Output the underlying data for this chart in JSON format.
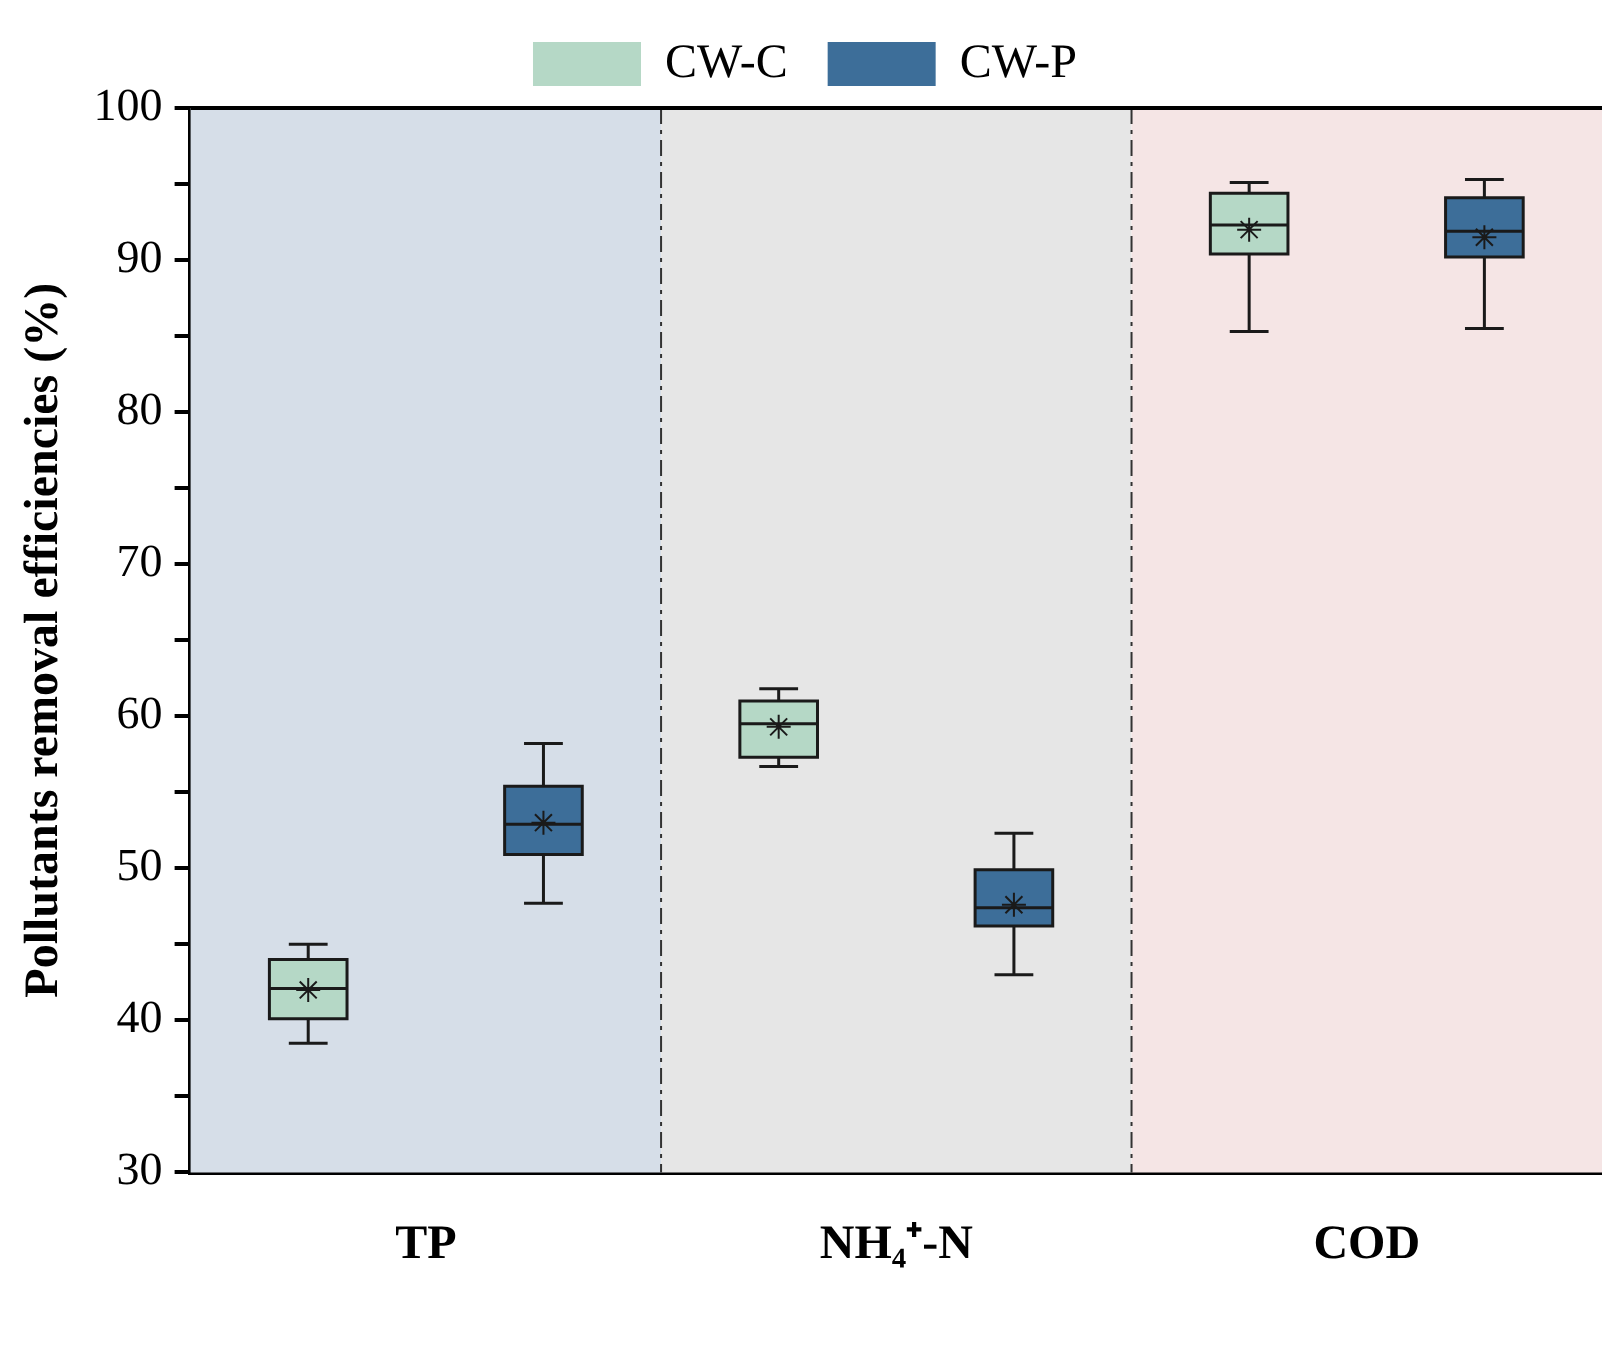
{
  "chart_data": {
    "type": "box",
    "ylabel": "Pollutants removal efficiencies (%)",
    "categories": [
      "TP",
      "NH₄⁺-N",
      "COD"
    ],
    "ylim": [
      30,
      100
    ],
    "yticks": [
      30,
      {
        "value": 35,
        "label": null
      },
      40,
      {
        "value": 45,
        "label": null
      },
      50,
      {
        "value": 55,
        "label": null
      },
      60,
      {
        "value": 65,
        "label": null
      },
      70,
      {
        "value": 75,
        "label": null
      },
      80,
      {
        "value": 85,
        "label": null
      },
      90,
      {
        "value": 95,
        "label": null
      },
      100
    ],
    "grid": false,
    "legend": "top",
    "bands": [
      {
        "axis": "x",
        "from": "TP",
        "to": "TP",
        "color": "#d6dee8"
      },
      {
        "axis": "x",
        "from": "NH₄⁺-N",
        "to": "NH₄⁺-N",
        "color": "#e6e6e6"
      },
      {
        "axis": "x",
        "from": "COD",
        "to": "COD",
        "color": "#f5e5e5"
      }
    ],
    "series": [
      {
        "name": "CW-C",
        "color": "#b5d8c6",
        "boxes": [
          {
            "low": 38.5,
            "q1": 40.1,
            "median": 42.1,
            "q3": 44.0,
            "high": 45.0,
            "mean": 42.0
          },
          {
            "low": 56.7,
            "q1": 57.3,
            "median": 59.5,
            "q3": 61.0,
            "high": 61.8,
            "mean": 59.3
          },
          {
            "low": 85.3,
            "q1": 90.4,
            "median": 92.3,
            "q3": 94.4,
            "high": 95.1,
            "mean": 92.0
          }
        ]
      },
      {
        "name": "CW-P",
        "color": "#3d6e99",
        "boxes": [
          {
            "low": 47.7,
            "q1": 50.9,
            "median": 52.9,
            "q3": 55.4,
            "high": 58.2,
            "mean": 53.0
          },
          {
            "low": 43.0,
            "q1": 46.2,
            "median": 47.4,
            "q3": 49.9,
            "high": 52.3,
            "mean": 47.6
          },
          {
            "low": 85.5,
            "q1": 90.2,
            "median": 91.9,
            "q3": 94.1,
            "high": 95.3,
            "mean": 91.5
          }
        ]
      }
    ]
  }
}
